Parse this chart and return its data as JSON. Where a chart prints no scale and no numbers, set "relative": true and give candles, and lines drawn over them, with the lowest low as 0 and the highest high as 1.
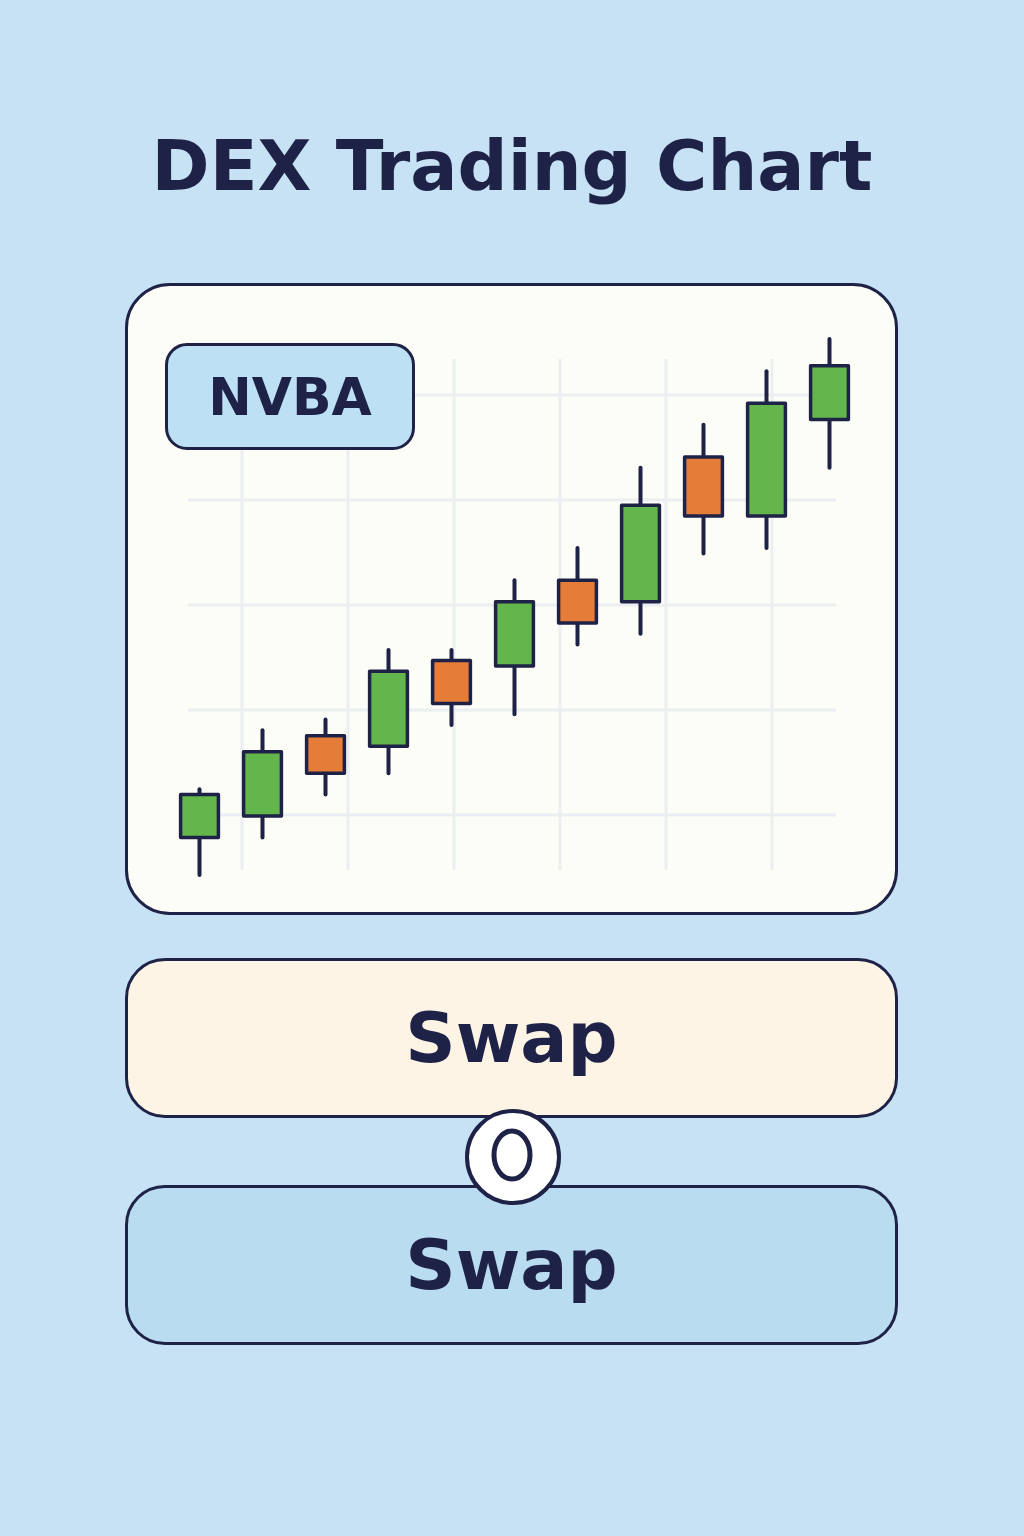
{
  "chart_data": {
    "type": "candlestick",
    "title": "DEX Trading Chart",
    "subtitle": "NVBA",
    "categories": [
      null,
      null,
      null,
      null,
      null,
      null,
      null,
      null,
      null,
      null,
      null
    ],
    "ohlc": [
      [
        0.07,
        0.16,
        0,
        0.15
      ],
      [
        0.11,
        0.27,
        0.07,
        0.23
      ],
      [
        0.26,
        0.29,
        0.15,
        0.19
      ],
      [
        0.24,
        0.42,
        0.19,
        0.38
      ],
      [
        0.4,
        0.42,
        0.28,
        0.32
      ],
      [
        0.39,
        0.55,
        0.3,
        0.51
      ],
      [
        0.55,
        0.61,
        0.43,
        0.47
      ],
      [
        0.51,
        0.76,
        0.45,
        0.69
      ],
      [
        0.78,
        0.84,
        0.6,
        0.67
      ],
      [
        0.67,
        0.94,
        0.61,
        0.88
      ],
      [
        0.85,
        1,
        0.76,
        0.95
      ]
    ],
    "colors": [
      "#63b64b",
      "#63b64b",
      "#e57c37",
      "#63b64b",
      "#e57c37",
      "#63b64b",
      "#e57c37",
      "#63b64b",
      "#e57c37",
      "#63b64b",
      "#63b64b"
    ],
    "relative": true,
    "grid": true,
    "annotations": [
      "Swap",
      "Swap"
    ]
  }
}
